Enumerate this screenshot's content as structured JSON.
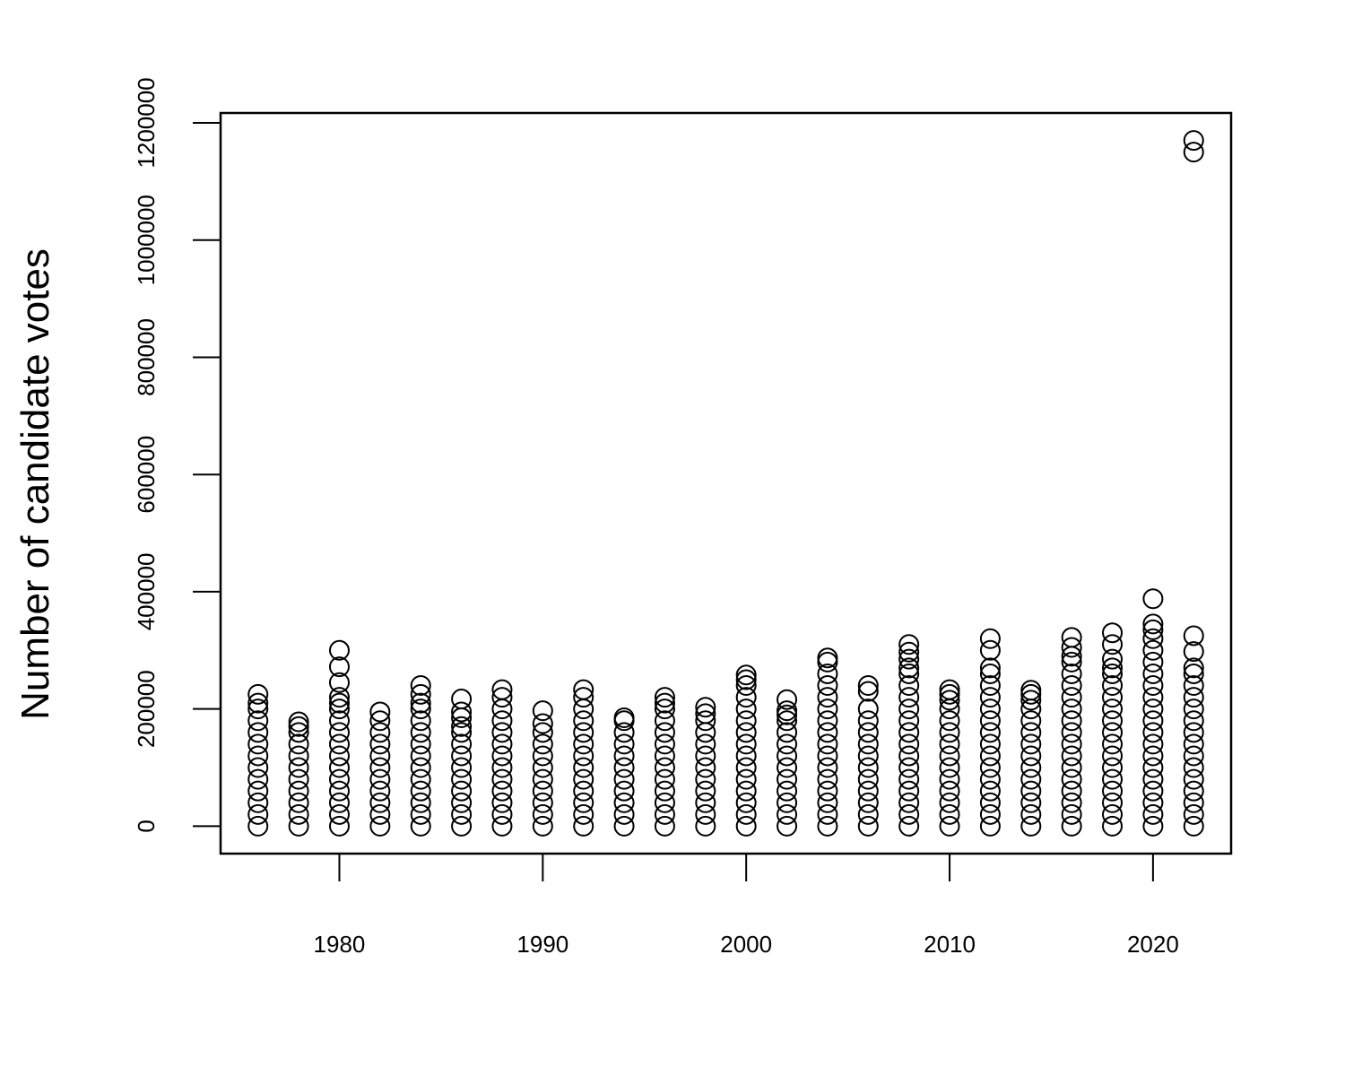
{
  "chart_data": {
    "type": "scatter",
    "y_label": "Number of candidate votes",
    "xlim": [
      1974.16,
      2023.84
    ],
    "ylim": [
      -46800,
      1216800
    ],
    "xticks": [
      1980,
      1990,
      2000,
      2010,
      2020
    ],
    "yticks": [
      0,
      200000,
      400000,
      600000,
      800000,
      1000000,
      1200000
    ],
    "color": "#000000",
    "x": [
      1976,
      1976,
      1976,
      1976,
      1976,
      1976,
      1976,
      1976,
      1976,
      1976,
      1976,
      1976,
      1976,
      1978,
      1978,
      1978,
      1978,
      1978,
      1978,
      1978,
      1978,
      1978,
      1978,
      1978,
      1980,
      1980,
      1980,
      1980,
      1980,
      1980,
      1980,
      1980,
      1980,
      1980,
      1980,
      1980,
      1980,
      1980,
      1980,
      1980,
      1982,
      1982,
      1982,
      1982,
      1982,
      1982,
      1982,
      1982,
      1982,
      1982,
      1982,
      1984,
      1984,
      1984,
      1984,
      1984,
      1984,
      1984,
      1984,
      1984,
      1984,
      1984,
      1984,
      1984,
      1984,
      1986,
      1986,
      1986,
      1986,
      1986,
      1986,
      1986,
      1986,
      1986,
      1986,
      1986,
      1986,
      1986,
      1988,
      1988,
      1988,
      1988,
      1988,
      1988,
      1988,
      1988,
      1988,
      1988,
      1988,
      1988,
      1988,
      1990,
      1990,
      1990,
      1990,
      1990,
      1990,
      1990,
      1990,
      1990,
      1990,
      1990,
      1992,
      1992,
      1992,
      1992,
      1992,
      1992,
      1992,
      1992,
      1992,
      1992,
      1992,
      1992,
      1992,
      1994,
      1994,
      1994,
      1994,
      1994,
      1994,
      1994,
      1994,
      1994,
      1994,
      1994,
      1996,
      1996,
      1996,
      1996,
      1996,
      1996,
      1996,
      1996,
      1996,
      1996,
      1996,
      1996,
      1996,
      1998,
      1998,
      1998,
      1998,
      1998,
      1998,
      1998,
      1998,
      1998,
      1998,
      1998,
      1998,
      2000,
      2000,
      2000,
      2000,
      2000,
      2000,
      2000,
      2000,
      2000,
      2000,
      2000,
      2000,
      2000,
      2000,
      2000,
      2002,
      2002,
      2002,
      2002,
      2002,
      2002,
      2002,
      2002,
      2002,
      2002,
      2002,
      2002,
      2002,
      2004,
      2004,
      2004,
      2004,
      2004,
      2004,
      2004,
      2004,
      2004,
      2004,
      2004,
      2004,
      2004,
      2004,
      2004,
      2004,
      2006,
      2006,
      2006,
      2006,
      2006,
      2006,
      2006,
      2006,
      2006,
      2006,
      2006,
      2006,
      2006,
      2008,
      2008,
      2008,
      2008,
      2008,
      2008,
      2008,
      2008,
      2008,
      2008,
      2008,
      2008,
      2008,
      2008,
      2008,
      2008,
      2008,
      2008,
      2010,
      2010,
      2010,
      2010,
      2010,
      2010,
      2010,
      2010,
      2010,
      2010,
      2010,
      2010,
      2010,
      2010,
      2012,
      2012,
      2012,
      2012,
      2012,
      2012,
      2012,
      2012,
      2012,
      2012,
      2012,
      2012,
      2012,
      2012,
      2012,
      2012,
      2012,
      2014,
      2014,
      2014,
      2014,
      2014,
      2014,
      2014,
      2014,
      2014,
      2014,
      2014,
      2014,
      2014,
      2014,
      2016,
      2016,
      2016,
      2016,
      2016,
      2016,
      2016,
      2016,
      2016,
      2016,
      2016,
      2016,
      2016,
      2016,
      2016,
      2016,
      2016,
      2016,
      2018,
      2018,
      2018,
      2018,
      2018,
      2018,
      2018,
      2018,
      2018,
      2018,
      2018,
      2018,
      2018,
      2018,
      2018,
      2018,
      2018,
      2018,
      2020,
      2020,
      2020,
      2020,
      2020,
      2020,
      2020,
      2020,
      2020,
      2020,
      2020,
      2020,
      2020,
      2020,
      2020,
      2020,
      2020,
      2020,
      2020,
      2020,
      2022,
      2022,
      2022,
      2022,
      2022,
      2022,
      2022,
      2022,
      2022,
      2022,
      2022,
      2022,
      2022,
      2022,
      2022,
      2022,
      2022,
      2022,
      2022
    ],
    "values": [
      0,
      20000,
      40000,
      60000,
      80000,
      100000,
      120000,
      140000,
      160000,
      180000,
      200000,
      210000,
      225000,
      0,
      20000,
      40000,
      60000,
      80000,
      100000,
      120000,
      140000,
      160000,
      170000,
      178000,
      0,
      20000,
      40000,
      60000,
      80000,
      100000,
      120000,
      140000,
      160000,
      180000,
      200000,
      210000,
      220000,
      245000,
      272000,
      300000,
      0,
      20000,
      40000,
      60000,
      80000,
      100000,
      120000,
      140000,
      160000,
      180000,
      195000,
      0,
      20000,
      40000,
      60000,
      80000,
      100000,
      120000,
      140000,
      160000,
      180000,
      200000,
      210000,
      225000,
      240000,
      0,
      20000,
      40000,
      60000,
      80000,
      100000,
      120000,
      140000,
      160000,
      170000,
      185000,
      195000,
      217000,
      0,
      20000,
      40000,
      60000,
      80000,
      100000,
      120000,
      140000,
      160000,
      180000,
      200000,
      220000,
      233000,
      0,
      20000,
      40000,
      60000,
      80000,
      100000,
      120000,
      140000,
      160000,
      175000,
      197000,
      0,
      20000,
      40000,
      60000,
      80000,
      100000,
      120000,
      140000,
      160000,
      180000,
      200000,
      220000,
      233000,
      0,
      20000,
      40000,
      60000,
      80000,
      100000,
      120000,
      140000,
      160000,
      180000,
      185000,
      0,
      20000,
      40000,
      60000,
      80000,
      100000,
      120000,
      140000,
      160000,
      180000,
      200000,
      210000,
      220000,
      0,
      20000,
      40000,
      60000,
      80000,
      100000,
      120000,
      140000,
      160000,
      180000,
      192000,
      203000,
      0,
      20000,
      40000,
      60000,
      80000,
      100000,
      120000,
      140000,
      160000,
      180000,
      200000,
      220000,
      240000,
      250000,
      258000,
      0,
      20000,
      40000,
      60000,
      80000,
      100000,
      120000,
      140000,
      160000,
      180000,
      190000,
      197000,
      216000,
      0,
      20000,
      40000,
      60000,
      80000,
      100000,
      120000,
      140000,
      160000,
      180000,
      200000,
      220000,
      240000,
      260000,
      280000,
      287000,
      0,
      20000,
      40000,
      60000,
      80000,
      100000,
      120000,
      140000,
      160000,
      180000,
      200000,
      230000,
      240000,
      0,
      20000,
      40000,
      60000,
      80000,
      100000,
      120000,
      140000,
      160000,
      180000,
      200000,
      220000,
      240000,
      260000,
      270000,
      285000,
      297000,
      310000,
      0,
      20000,
      40000,
      60000,
      80000,
      100000,
      120000,
      140000,
      160000,
      180000,
      200000,
      215000,
      225000,
      233000,
      0,
      20000,
      40000,
      60000,
      80000,
      100000,
      120000,
      140000,
      160000,
      180000,
      200000,
      220000,
      240000,
      260000,
      270000,
      300000,
      320000,
      0,
      20000,
      40000,
      60000,
      80000,
      100000,
      120000,
      140000,
      160000,
      180000,
      200000,
      215000,
      225000,
      232000,
      0,
      20000,
      40000,
      60000,
      80000,
      100000,
      120000,
      140000,
      160000,
      180000,
      200000,
      220000,
      240000,
      260000,
      280000,
      290000,
      305000,
      322000,
      0,
      20000,
      40000,
      60000,
      80000,
      100000,
      120000,
      140000,
      160000,
      180000,
      200000,
      220000,
      240000,
      260000,
      270000,
      285000,
      310000,
      330000,
      0,
      20000,
      40000,
      60000,
      80000,
      100000,
      120000,
      140000,
      160000,
      180000,
      200000,
      220000,
      240000,
      260000,
      280000,
      300000,
      320000,
      335000,
      345000,
      388000,
      0,
      20000,
      40000,
      60000,
      80000,
      100000,
      120000,
      140000,
      160000,
      180000,
      200000,
      220000,
      240000,
      260000,
      270000,
      298000,
      325000,
      1150000,
      1170000
    ]
  }
}
